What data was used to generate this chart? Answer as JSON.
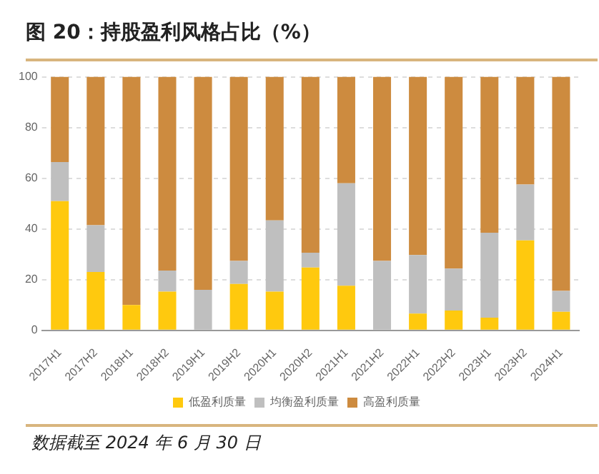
{
  "chart_data": {
    "type": "bar",
    "title": "图 20：持股盈利风格占比（%）",
    "stacked": true,
    "categories": [
      "2017H1",
      "2017H2",
      "2018H1",
      "2018H2",
      "2019H1",
      "2019H2",
      "2020H1",
      "2020H2",
      "2021H1",
      "2021H2",
      "2022H1",
      "2022H2",
      "2023H1",
      "2023H2",
      "2024H1"
    ],
    "series": [
      {
        "name": "低盈利质量",
        "color": "#ffc90e",
        "values": [
          51,
          23,
          10,
          15.3,
          0,
          18.3,
          15.3,
          24.8,
          17.6,
          0.3,
          6.6,
          7.8,
          5,
          35.5,
          7.3
        ]
      },
      {
        "name": "均衡盈利质量",
        "color": "#bfbfbf",
        "values": [
          15.4,
          18.5,
          0,
          8.3,
          16,
          9.1,
          28.1,
          5.8,
          40.4,
          27.1,
          23.1,
          16.6,
          33.5,
          22,
          8.3
        ]
      },
      {
        "name": "高盈利质量",
        "color": "#cd8b3f",
        "values": [
          33.6,
          58.5,
          90,
          76.4,
          84,
          72.6,
          56.6,
          69.4,
          42,
          72.6,
          70.3,
          75.6,
          61.5,
          42.5,
          84.4
        ]
      }
    ],
    "ylim": [
      0,
      100
    ],
    "yticks": [
      0,
      20,
      40,
      60,
      80,
      100
    ],
    "grid": "y",
    "legend": "bottom",
    "annotations": [
      "数据截至 2024 年 6 月 30 日"
    ]
  }
}
